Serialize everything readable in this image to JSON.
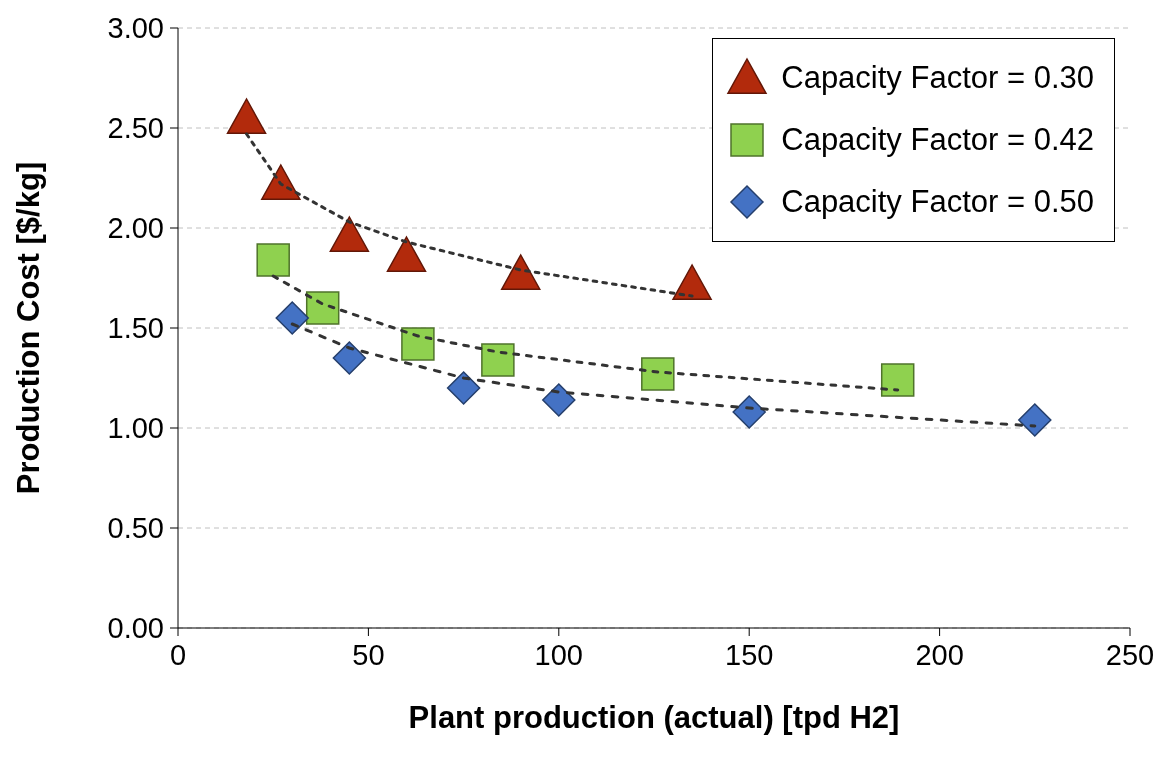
{
  "chart_data": {
    "type": "scatter",
    "xlabel": "Plant production (actual) [tpd H2]",
    "ylabel": "Production Cost [$/kg]",
    "xlim": [
      0,
      250
    ],
    "xticks": [
      0,
      50,
      100,
      150,
      200,
      250
    ],
    "ylim": [
      0,
      3
    ],
    "yticks": [
      {
        "value": 0,
        "label": "0.00"
      },
      {
        "value": 0.5,
        "label": "0.50"
      },
      {
        "value": 1,
        "label": "1.00"
      },
      {
        "value": 1.5,
        "label": "1.50"
      },
      {
        "value": 2,
        "label": "2.00"
      },
      {
        "value": 2.5,
        "label": "2.50"
      },
      {
        "value": 3,
        "label": "3.00"
      }
    ],
    "grid": "y",
    "legend": "top right",
    "series": [
      {
        "name": "Capacity Factor = 0.30",
        "color": "#b22a0c",
        "marker": "triangle",
        "x": [
          18,
          27,
          45,
          60,
          90,
          135
        ],
        "values": [
          2.55,
          2.22,
          1.96,
          1.86,
          1.77,
          1.72
        ]
      },
      {
        "name": "Capacity Factor = 0.42",
        "color": "#8fd14f",
        "marker": "square",
        "x": [
          25,
          38,
          63,
          84,
          126,
          189
        ],
        "values": [
          1.84,
          1.6,
          1.42,
          1.34,
          1.27,
          1.24
        ]
      },
      {
        "name": "Capacity Factor = 0.50",
        "color": "#4472c4",
        "marker": "diamond",
        "x": [
          30,
          45,
          75,
          100,
          150,
          225
        ],
        "values": [
          1.55,
          1.35,
          1.2,
          1.14,
          1.08,
          1.04
        ]
      },
      {
        "type": "line",
        "color": "#333333",
        "line_style": "dotted",
        "marker": "none",
        "x": [
          18,
          27,
          45,
          60,
          90,
          135
        ],
        "values": [
          2.47,
          2.22,
          2.03,
          1.93,
          1.79,
          1.66
        ]
      },
      {
        "type": "line",
        "color": "#333333",
        "line_style": "dotted",
        "marker": "none",
        "x": [
          25,
          38,
          63,
          84,
          126,
          189
        ],
        "values": [
          1.76,
          1.62,
          1.46,
          1.38,
          1.28,
          1.19
        ]
      },
      {
        "type": "line",
        "color": "#333333",
        "line_style": "dotted",
        "marker": "none",
        "x": [
          30,
          45,
          75,
          100,
          150,
          225
        ],
        "values": [
          1.52,
          1.4,
          1.25,
          1.18,
          1.1,
          1.01
        ]
      }
    ]
  }
}
